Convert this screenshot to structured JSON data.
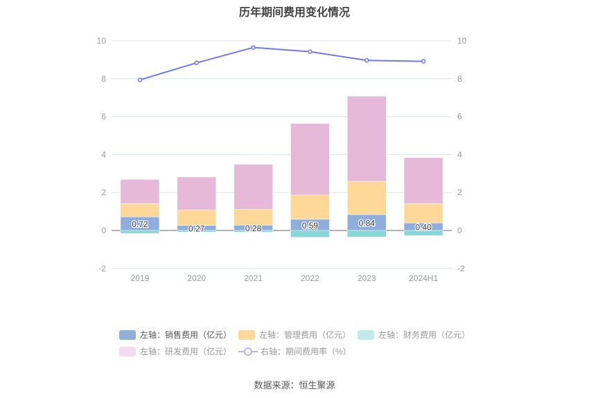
{
  "chart_data": {
    "type": "bar",
    "title": "历年期间费用变化情况",
    "categories": [
      "2019",
      "2020",
      "2021",
      "2022",
      "2023",
      "2024H1"
    ],
    "left_axis": {
      "ylim": [
        -2,
        10
      ],
      "ticks": [
        -2,
        0,
        2,
        4,
        6,
        8,
        10
      ]
    },
    "right_axis": {
      "ylim": [
        -2,
        10
      ],
      "ticks": [
        -2,
        0,
        2,
        4,
        6,
        8,
        10
      ]
    },
    "grid": true,
    "legend_placement": "bottom",
    "series": [
      {
        "name": "左轴：销售费用（亿元）",
        "type": "bar",
        "stack": true,
        "color": "#8eaedb",
        "values": [
          0.72,
          0.27,
          0.28,
          0.59,
          0.84,
          0.4
        ],
        "labels": [
          "0.72",
          "0.27",
          "0.28",
          "0.59",
          "0.84",
          "0.40"
        ]
      },
      {
        "name": "左轴：管理费用（亿元）",
        "type": "bar",
        "stack": true,
        "color": "#fed899",
        "values": [
          0.7,
          0.81,
          0.84,
          1.28,
          1.75,
          1.02
        ]
      },
      {
        "name": "左轴：财务费用（亿元）",
        "type": "bar",
        "stack": true,
        "color": "#88d6d8",
        "legend_color": "#c2eaeb",
        "values": [
          -0.15,
          -0.08,
          -0.09,
          -0.36,
          -0.34,
          -0.27
        ]
      },
      {
        "name": "左轴：研发费用（亿元）",
        "type": "bar",
        "stack": true,
        "color": "#e7b9d9",
        "legend_color": "#f4dcec",
        "values": [
          1.27,
          1.74,
          2.37,
          3.77,
          4.49,
          2.42
        ]
      },
      {
        "name": "右轴：期间费用率（%）",
        "type": "line",
        "axis": "right",
        "color": "#7474ef",
        "values": [
          7.94,
          8.84,
          9.65,
          9.43,
          8.97,
          8.92
        ]
      }
    ]
  },
  "source": "数据来源：恒生聚源"
}
